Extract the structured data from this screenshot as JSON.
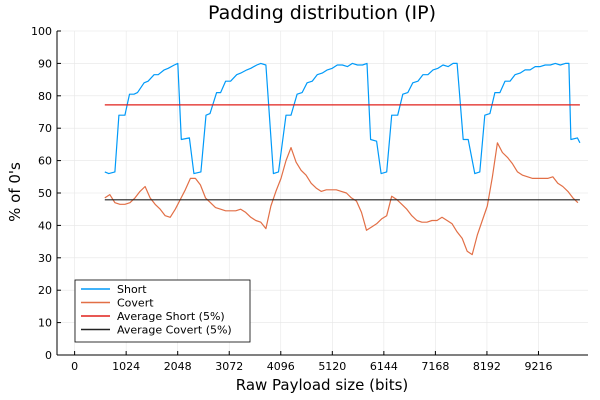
{
  "chart_data": {
    "type": "line",
    "title": "Padding distribution (IP)",
    "xlabel": "Raw Payload size (bits)",
    "ylabel": "% of 0's",
    "xlim": [
      -350,
      10200
    ],
    "ylim": [
      0,
      100
    ],
    "xticks": [
      0,
      1024,
      2048,
      3072,
      4096,
      5120,
      6144,
      7168,
      8192,
      9216
    ],
    "yticks": [
      0,
      10,
      20,
      30,
      40,
      50,
      60,
      70,
      80,
      90,
      100
    ],
    "grid": true,
    "legend_position": "bottom-left",
    "series": [
      {
        "name": "Short",
        "color": "#009af9",
        "x": [
          600,
          680,
          800,
          880,
          1000,
          1090,
          1180,
          1250,
          1380,
          1460,
          1580,
          1660,
          1780,
          1860,
          1980,
          2050,
          2120,
          2280,
          2370,
          2510,
          2610,
          2690,
          2820,
          2900,
          3000,
          3100,
          3220,
          3300,
          3420,
          3500,
          3620,
          3700,
          3800,
          3950,
          4050,
          4200,
          4300,
          4420,
          4520,
          4620,
          4720,
          4820,
          4920,
          5020,
          5120,
          5220,
          5320,
          5420,
          5520,
          5620,
          5720,
          5810,
          5880,
          6000,
          6090,
          6200,
          6300,
          6420,
          6520,
          6620,
          6720,
          6820,
          6920,
          7020,
          7120,
          7220,
          7320,
          7420,
          7520,
          7600,
          7720,
          7820,
          7950,
          8050,
          8150,
          8250,
          8350,
          8450,
          8550,
          8650,
          8750,
          8850,
          8950,
          9050,
          9150,
          9250,
          9350,
          9450,
          9550,
          9650,
          9750,
          9820,
          9860,
          9990,
          10040
        ],
        "y": [
          56.5,
          56,
          56.5,
          74,
          74,
          80.5,
          80.5,
          81,
          84,
          84.5,
          86.5,
          86.5,
          88,
          88.5,
          89.5,
          90,
          66.5,
          67,
          56,
          56.5,
          74,
          74.5,
          81,
          81,
          84.5,
          84.5,
          86.5,
          87,
          88,
          88.5,
          89.5,
          90,
          89.5,
          56,
          56.5,
          74,
          74,
          80.5,
          81,
          84,
          84.5,
          86.5,
          87,
          88,
          88.5,
          89.5,
          89.5,
          89,
          90,
          89.5,
          89.5,
          90,
          66.5,
          66,
          56,
          56.5,
          74,
          74,
          80.5,
          81,
          84,
          84.5,
          86.5,
          86.5,
          88,
          88.5,
          89.5,
          89,
          90,
          90,
          66.5,
          66.5,
          56,
          56.5,
          74,
          74.5,
          81,
          81,
          84.5,
          84.5,
          86.5,
          87,
          88,
          88,
          89,
          89,
          89.5,
          89.5,
          90,
          89.5,
          90,
          90,
          66.5,
          67,
          65.5
        ]
      },
      {
        "name": "Covert",
        "color": "#e26f46",
        "x": [
          600,
          700,
          800,
          900,
          1000,
          1100,
          1200,
          1300,
          1400,
          1500,
          1600,
          1700,
          1800,
          1900,
          2000,
          2100,
          2200,
          2300,
          2400,
          2500,
          2600,
          2700,
          2800,
          2900,
          3000,
          3100,
          3200,
          3300,
          3400,
          3500,
          3600,
          3700,
          3800,
          3900,
          4000,
          4100,
          4200,
          4300,
          4400,
          4500,
          4600,
          4700,
          4800,
          4900,
          5000,
          5100,
          5200,
          5300,
          5400,
          5500,
          5600,
          5700,
          5800,
          5900,
          6000,
          6100,
          6200,
          6300,
          6400,
          6500,
          6600,
          6700,
          6800,
          6900,
          7000,
          7100,
          7200,
          7300,
          7400,
          7500,
          7600,
          7700,
          7800,
          7900,
          8000,
          8100,
          8200,
          8300,
          8400,
          8500,
          8600,
          8700,
          8800,
          8900,
          9000,
          9100,
          9200,
          9300,
          9400,
          9500,
          9600,
          9700,
          9800,
          9900,
          10000
        ],
        "y": [
          48.5,
          49.5,
          47,
          46.5,
          46.5,
          47,
          48.5,
          50.5,
          52,
          48.5,
          46.5,
          45,
          43,
          42.5,
          45,
          48,
          51,
          54.5,
          54.5,
          52.5,
          48.5,
          47,
          45.5,
          45,
          44.5,
          44.5,
          44.5,
          45,
          44,
          42.5,
          41.5,
          41,
          39,
          46,
          50.5,
          54.5,
          60,
          64,
          59.5,
          57,
          55.5,
          53,
          51.5,
          50.5,
          51,
          51,
          51,
          50.5,
          50,
          48.5,
          47.5,
          44,
          38.5,
          39.5,
          40.5,
          42,
          43,
          49,
          48,
          46.5,
          45,
          43,
          41.5,
          41,
          41,
          41.5,
          41.5,
          42.5,
          41.5,
          40.5,
          38,
          36,
          32,
          31,
          37,
          41.5,
          46,
          55,
          65.5,
          62.5,
          61,
          59,
          56.5,
          55.5,
          55,
          54.5,
          54.5,
          54.5,
          54.5,
          55,
          53,
          52,
          50.5,
          48.5,
          47
        ]
      },
      {
        "name": "Average Short (5%)",
        "color": "#e0201b",
        "x": [
          600,
          10040
        ],
        "y": [
          77.2,
          77.2
        ]
      },
      {
        "name": "Average Covert (5%)",
        "color": "#222222",
        "x": [
          600,
          10040
        ],
        "y": [
          47.9,
          47.9
        ]
      }
    ]
  }
}
